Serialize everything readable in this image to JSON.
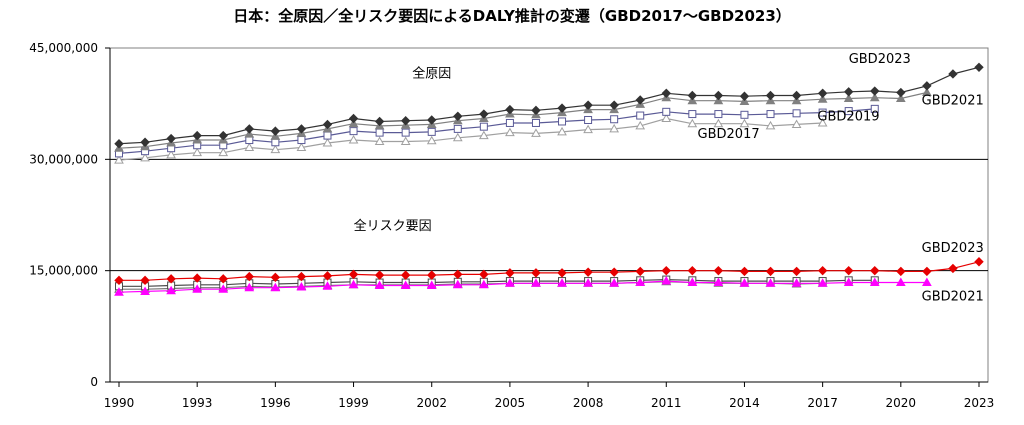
{
  "chart_data": {
    "type": "line",
    "title": "日本：全原因／全リスク要因によるDALY推計の変遷（GBD2017～GBD2023）",
    "xlabel": "",
    "ylabel": "",
    "ylim": [
      0,
      45000000
    ],
    "xlim": [
      1990,
      2023
    ],
    "y_ticks": [
      0,
      15000000,
      30000000,
      45000000
    ],
    "y_tick_labels": [
      "0",
      "15,000,000",
      "30,000,000",
      "45,000,000"
    ],
    "x_ticks": [
      1990,
      1993,
      1996,
      1999,
      2002,
      2005,
      2008,
      2011,
      2014,
      2017,
      2020,
      2023
    ],
    "x_tick_labels": [
      "1990",
      "1993",
      "1996",
      "1999",
      "2002",
      "2005",
      "2008",
      "2011",
      "2014",
      "2017",
      "2020",
      "2023"
    ],
    "gridlines": [
      15000000,
      30000000
    ],
    "group_labels": [
      {
        "text": "全原因",
        "x": 2002,
        "y": 41000000
      },
      {
        "text": "全リスク要因",
        "x": 2000.5,
        "y": 20500000
      }
    ],
    "series_labels": [
      {
        "text": "GBD2023",
        "x": 2018.0,
        "y": 43000000
      },
      {
        "text": "GBD2021",
        "x": 2020.8,
        "y": 37400000
      },
      {
        "text": "GBD2019",
        "x": 2016.8,
        "y": 35200000
      },
      {
        "text": "GBD2017",
        "x": 2012.2,
        "y": 32900000
      },
      {
        "text": "GBD2023",
        "x": 2020.8,
        "y": 17500000
      },
      {
        "text": "GBD2021",
        "x": 2020.8,
        "y": 11000000
      }
    ],
    "series": [
      {
        "name": "全原因 GBD2023",
        "color": "#333333",
        "marker": "diamond-filled",
        "x": [
          1990,
          1991,
          1992,
          1993,
          1994,
          1995,
          1996,
          1997,
          1998,
          1999,
          2000,
          2001,
          2002,
          2003,
          2004,
          2005,
          2006,
          2007,
          2008,
          2009,
          2010,
          2011,
          2012,
          2013,
          2014,
          2015,
          2016,
          2017,
          2018,
          2019,
          2020,
          2021,
          2022,
          2023
        ],
        "values": [
          32100000,
          32300000,
          32800000,
          33200000,
          33200000,
          34100000,
          33800000,
          34100000,
          34700000,
          35500000,
          35100000,
          35200000,
          35300000,
          35800000,
          36100000,
          36700000,
          36600000,
          36900000,
          37300000,
          37300000,
          38000000,
          38900000,
          38600000,
          38600000,
          38500000,
          38600000,
          38600000,
          38900000,
          39100000,
          39200000,
          39000000,
          39900000,
          41500000,
          42400000
        ]
      },
      {
        "name": "全原因 GBD2021",
        "color": "#808080",
        "marker": "triangle-filled",
        "x": [
          1990,
          1991,
          1992,
          1993,
          1994,
          1995,
          1996,
          1997,
          1998,
          1999,
          2000,
          2001,
          2002,
          2003,
          2004,
          2005,
          2006,
          2007,
          2008,
          2009,
          2010,
          2011,
          2012,
          2013,
          2014,
          2015,
          2016,
          2017,
          2018,
          2019,
          2020,
          2021
        ],
        "values": [
          31500000,
          31700000,
          32200000,
          32600000,
          32600000,
          33400000,
          33100000,
          33500000,
          34100000,
          34800000,
          34500000,
          34600000,
          34700000,
          35200000,
          35500000,
          36100000,
          36000000,
          36300000,
          36700000,
          36700000,
          37400000,
          38300000,
          37900000,
          37900000,
          37800000,
          37900000,
          37900000,
          38100000,
          38200000,
          38300000,
          38200000,
          39000000
        ]
      },
      {
        "name": "全原因 GBD2019",
        "color": "#5a5a96",
        "marker": "square-open",
        "x": [
          1990,
          1991,
          1992,
          1993,
          1994,
          1995,
          1996,
          1997,
          1998,
          1999,
          2000,
          2001,
          2002,
          2003,
          2004,
          2005,
          2006,
          2007,
          2008,
          2009,
          2010,
          2011,
          2012,
          2013,
          2014,
          2015,
          2016,
          2017,
          2018,
          2019
        ],
        "values": [
          30800000,
          31100000,
          31500000,
          31900000,
          31900000,
          32600000,
          32300000,
          32600000,
          33200000,
          33800000,
          33600000,
          33600000,
          33700000,
          34100000,
          34400000,
          34900000,
          34900000,
          35100000,
          35300000,
          35400000,
          35900000,
          36400000,
          36100000,
          36100000,
          36000000,
          36100000,
          36200000,
          36300000,
          36500000,
          36800000
        ]
      },
      {
        "name": "全原因 GBD2017",
        "color": "#a0a0a0",
        "marker": "triangle-open",
        "x": [
          1990,
          1991,
          1992,
          1993,
          1994,
          1995,
          1996,
          1997,
          1998,
          1999,
          2000,
          2001,
          2002,
          2003,
          2004,
          2005,
          2006,
          2007,
          2008,
          2009,
          2010,
          2011,
          2012,
          2013,
          2014,
          2015,
          2016,
          2017
        ],
        "values": [
          29900000,
          30200000,
          30600000,
          30900000,
          30900000,
          31600000,
          31300000,
          31600000,
          32200000,
          32600000,
          32400000,
          32400000,
          32500000,
          32900000,
          33200000,
          33600000,
          33500000,
          33700000,
          34000000,
          34100000,
          34500000,
          35500000,
          34800000,
          34800000,
          34800000,
          34500000,
          34700000,
          34900000
        ]
      },
      {
        "name": "全リスク要因 GBD2023",
        "color": "#e60000",
        "marker": "diamond-filled",
        "x": [
          1990,
          1991,
          1992,
          1993,
          1994,
          1995,
          1996,
          1997,
          1998,
          1999,
          2000,
          2001,
          2002,
          2003,
          2004,
          2005,
          2006,
          2007,
          2008,
          2009,
          2010,
          2011,
          2012,
          2013,
          2014,
          2015,
          2016,
          2017,
          2018,
          2019,
          2020,
          2021,
          2022,
          2023
        ],
        "values": [
          13700000,
          13700000,
          13900000,
          14000000,
          13900000,
          14200000,
          14100000,
          14200000,
          14300000,
          14500000,
          14400000,
          14400000,
          14400000,
          14500000,
          14500000,
          14700000,
          14700000,
          14700000,
          14800000,
          14800000,
          14900000,
          15000000,
          15000000,
          15000000,
          14900000,
          14900000,
          14900000,
          15000000,
          15000000,
          15000000,
          14900000,
          14900000,
          15300000,
          16200000
        ]
      },
      {
        "name": "全リスク要因 GBD2021",
        "color": "#ff00ff",
        "marker": "triangle-filled",
        "x": [
          1990,
          1991,
          1992,
          1993,
          1994,
          1995,
          1996,
          1997,
          1998,
          1999,
          2000,
          2001,
          2002,
          2003,
          2004,
          2005,
          2006,
          2007,
          2008,
          2009,
          2010,
          2011,
          2012,
          2013,
          2014,
          2015,
          2016,
          2017,
          2018,
          2019,
          2020,
          2021
        ],
        "values": [
          12100000,
          12200000,
          12300000,
          12500000,
          12500000,
          12700000,
          12700000,
          12800000,
          12900000,
          13100000,
          13000000,
          13000000,
          13000000,
          13100000,
          13100000,
          13300000,
          13300000,
          13300000,
          13300000,
          13300000,
          13400000,
          13600000,
          13400000,
          13400000,
          13300000,
          13300000,
          13300000,
          13300000,
          13400000,
          13400000,
          13400000,
          13400000
        ]
      },
      {
        "name": "全リスク要因 GBD2019",
        "color": "#4a4a4a",
        "marker": "square-open",
        "x": [
          1990,
          1991,
          1992,
          1993,
          1994,
          1995,
          1996,
          1997,
          1998,
          1999,
          2000,
          2001,
          2002,
          2003,
          2004,
          2005,
          2006,
          2007,
          2008,
          2009,
          2010,
          2011,
          2012,
          2013,
          2014,
          2015,
          2016,
          2017,
          2018,
          2019
        ],
        "values": [
          12900000,
          12900000,
          13000000,
          13100000,
          13100000,
          13300000,
          13200000,
          13300000,
          13400000,
          13500000,
          13400000,
          13400000,
          13400000,
          13500000,
          13500000,
          13600000,
          13600000,
          13600000,
          13600000,
          13600000,
          13700000,
          13800000,
          13700000,
          13600000,
          13600000,
          13600000,
          13600000,
          13600000,
          13700000,
          13700000
        ]
      },
      {
        "name": "全リスク要因 GBD2017",
        "color": "#777777",
        "marker": "triangle-open",
        "x": [
          1990,
          1991,
          1992,
          1993,
          1994,
          1995,
          1996,
          1997,
          1998,
          1999,
          2000,
          2001,
          2002,
          2003,
          2004,
          2005,
          2006,
          2007,
          2008,
          2009,
          2010,
          2011,
          2012,
          2013,
          2014,
          2015,
          2016,
          2017
        ],
        "values": [
          12500000,
          12500000,
          12600000,
          12700000,
          12700000,
          12900000,
          12800000,
          12900000,
          13000000,
          13100000,
          13100000,
          13100000,
          13100000,
          13200000,
          13200000,
          13300000,
          13300000,
          13300000,
          13300000,
          13300000,
          13400000,
          13500000,
          13400000,
          13300000,
          13300000,
          13300000,
          13200000,
          13300000
        ]
      }
    ]
  }
}
